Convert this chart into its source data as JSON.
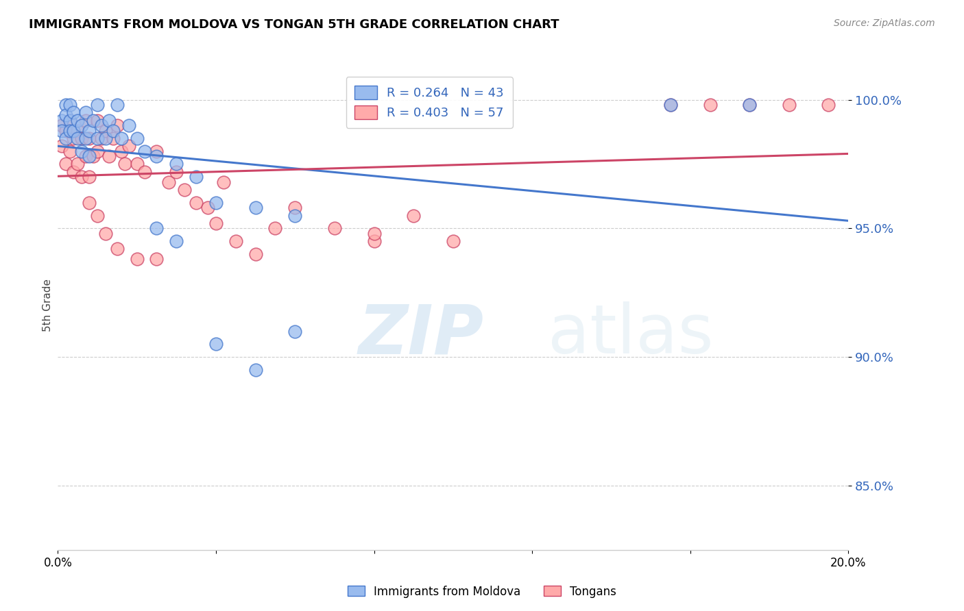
{
  "title": "IMMIGRANTS FROM MOLDOVA VS TONGAN 5TH GRADE CORRELATION CHART",
  "source_text": "Source: ZipAtlas.com",
  "ylabel": "5th Grade",
  "legend_labels": [
    "Immigrants from Moldova",
    "Tongans"
  ],
  "R_moldova": 0.264,
  "N_moldova": 43,
  "R_tongan": 0.403,
  "N_tongan": 57,
  "color_moldova": "#99bbee",
  "color_tongan": "#ffaaaa",
  "color_line_moldova": "#4477cc",
  "color_line_tongan": "#cc4466",
  "xlim": [
    0.0,
    0.2
  ],
  "ylim": [
    0.825,
    1.015
  ],
  "yticks": [
    0.85,
    0.9,
    0.95,
    1.0
  ],
  "ytick_labels": [
    "85.0%",
    "90.0%",
    "95.0%",
    "100.0%"
  ],
  "watermark": "ZIPatlas",
  "moldova_x": [
    0.001,
    0.001,
    0.002,
    0.002,
    0.002,
    0.003,
    0.003,
    0.003,
    0.004,
    0.004,
    0.005,
    0.005,
    0.006,
    0.006,
    0.007,
    0.007,
    0.008,
    0.008,
    0.009,
    0.01,
    0.01,
    0.011,
    0.012,
    0.013,
    0.014,
    0.015,
    0.016,
    0.018,
    0.02,
    0.022,
    0.025,
    0.03,
    0.035,
    0.04,
    0.05,
    0.06,
    0.025,
    0.03,
    0.155,
    0.175,
    0.04,
    0.05,
    0.06
  ],
  "moldova_y": [
    0.992,
    0.988,
    0.998,
    0.994,
    0.985,
    0.998,
    0.992,
    0.988,
    0.995,
    0.988,
    0.992,
    0.985,
    0.99,
    0.98,
    0.995,
    0.985,
    0.988,
    0.978,
    0.992,
    0.998,
    0.985,
    0.99,
    0.985,
    0.992,
    0.988,
    0.998,
    0.985,
    0.99,
    0.985,
    0.98,
    0.978,
    0.975,
    0.97,
    0.96,
    0.958,
    0.955,
    0.95,
    0.945,
    0.998,
    0.998,
    0.905,
    0.895,
    0.91
  ],
  "tongan_x": [
    0.001,
    0.001,
    0.002,
    0.002,
    0.003,
    0.003,
    0.004,
    0.004,
    0.005,
    0.005,
    0.006,
    0.006,
    0.007,
    0.007,
    0.008,
    0.008,
    0.009,
    0.01,
    0.01,
    0.011,
    0.012,
    0.013,
    0.014,
    0.015,
    0.016,
    0.017,
    0.018,
    0.02,
    0.022,
    0.025,
    0.028,
    0.03,
    0.032,
    0.035,
    0.038,
    0.04,
    0.042,
    0.045,
    0.05,
    0.055,
    0.06,
    0.07,
    0.08,
    0.09,
    0.1,
    0.155,
    0.165,
    0.175,
    0.185,
    0.195,
    0.008,
    0.01,
    0.012,
    0.015,
    0.02,
    0.025,
    0.08
  ],
  "tongan_y": [
    0.99,
    0.982,
    0.988,
    0.975,
    0.992,
    0.98,
    0.985,
    0.972,
    0.988,
    0.975,
    0.985,
    0.97,
    0.992,
    0.978,
    0.985,
    0.97,
    0.978,
    0.992,
    0.98,
    0.985,
    0.988,
    0.978,
    0.985,
    0.99,
    0.98,
    0.975,
    0.982,
    0.975,
    0.972,
    0.98,
    0.968,
    0.972,
    0.965,
    0.96,
    0.958,
    0.952,
    0.968,
    0.945,
    0.94,
    0.95,
    0.958,
    0.95,
    0.945,
    0.955,
    0.945,
    0.998,
    0.998,
    0.998,
    0.998,
    0.998,
    0.96,
    0.955,
    0.948,
    0.942,
    0.938,
    0.938,
    0.948
  ]
}
